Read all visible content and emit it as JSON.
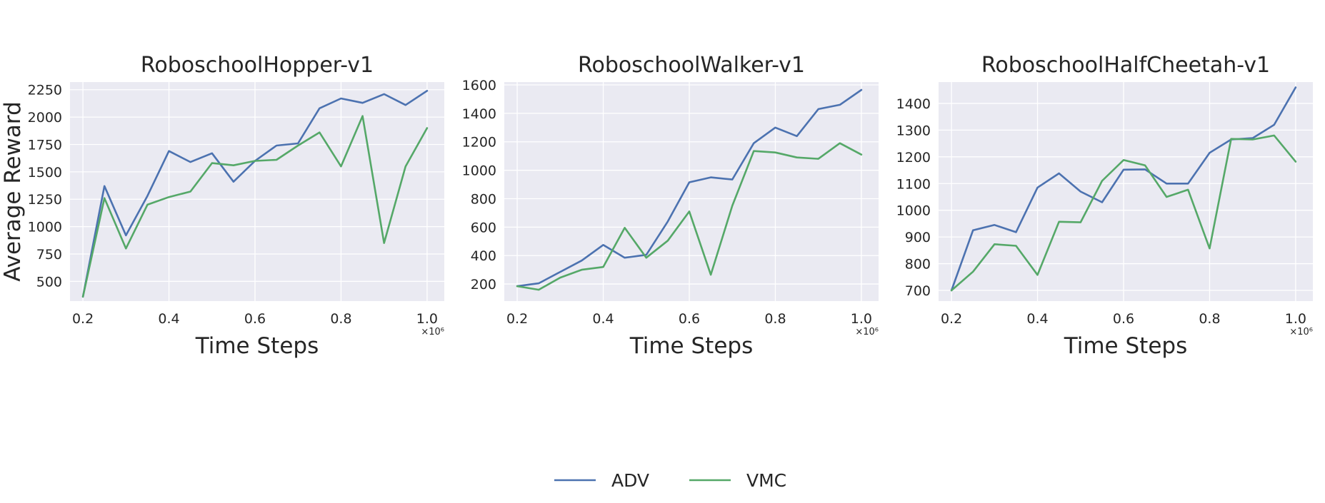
{
  "colors": {
    "ADV": "#4c72b0",
    "VMC": "#55a868",
    "panel_bg": "#eaeaf2",
    "grid": "#ffffff"
  },
  "legend": {
    "placement": "bottom-center",
    "entries": [
      "ADV",
      "VMC"
    ]
  },
  "chart_data": [
    {
      "type": "line",
      "title": "RoboschoolHopper-v1",
      "xlabel": "Time Steps",
      "ylabel": "Average Reward",
      "x_multiplier_label": "×10⁶",
      "x": [
        0.2,
        0.25,
        0.3,
        0.35,
        0.4,
        0.45,
        0.5,
        0.55,
        0.6,
        0.65,
        0.7,
        0.75,
        0.8,
        0.85,
        0.9,
        0.95,
        1.0
      ],
      "xlim": [
        0.17,
        1.04
      ],
      "ylim": [
        320,
        2320
      ],
      "xticks": [
        0.2,
        0.4,
        0.6,
        0.8,
        1.0
      ],
      "xtick_labels": [
        "0.2",
        "0.4",
        "0.6",
        "0.8",
        "1.0"
      ],
      "yticks": [
        500,
        750,
        1000,
        1250,
        1500,
        1750,
        2000,
        2250
      ],
      "ytick_labels": [
        "500",
        "750",
        "1000",
        "1250",
        "1500",
        "1750",
        "2000",
        "2250"
      ],
      "grid": true,
      "series": [
        {
          "name": "ADV",
          "values": [
            360,
            1370,
            920,
            1280,
            1690,
            1590,
            1670,
            1410,
            1600,
            1740,
            1760,
            2080,
            2170,
            2130,
            2210,
            2110,
            2240
          ]
        },
        {
          "name": "VMC",
          "values": [
            360,
            1260,
            800,
            1200,
            1270,
            1320,
            1580,
            1560,
            1600,
            1610,
            1740,
            1860,
            1550,
            2010,
            850,
            1550,
            1900
          ]
        }
      ]
    },
    {
      "type": "line",
      "title": "RoboschoolWalker-v1",
      "xlabel": "Time Steps",
      "ylabel": "",
      "x_multiplier_label": "×10⁶",
      "x": [
        0.2,
        0.25,
        0.3,
        0.35,
        0.4,
        0.45,
        0.5,
        0.55,
        0.6,
        0.65,
        0.7,
        0.75,
        0.8,
        0.85,
        0.9,
        0.95,
        1.0
      ],
      "xlim": [
        0.17,
        1.04
      ],
      "ylim": [
        80,
        1620
      ],
      "xticks": [
        0.2,
        0.4,
        0.6,
        0.8,
        1.0
      ],
      "xtick_labels": [
        "0.2",
        "0.4",
        "0.6",
        "0.8",
        "1.0"
      ],
      "yticks": [
        200,
        400,
        600,
        800,
        1000,
        1200,
        1400,
        1600
      ],
      "ytick_labels": [
        "200",
        "400",
        "600",
        "800",
        "1000",
        "1200",
        "1400",
        "1600"
      ],
      "grid": true,
      "series": [
        {
          "name": "ADV",
          "values": [
            185,
            205,
            285,
            365,
            475,
            385,
            405,
            640,
            915,
            950,
            935,
            1190,
            1300,
            1240,
            1430,
            1460,
            1565
          ]
        },
        {
          "name": "VMC",
          "values": [
            185,
            160,
            245,
            300,
            320,
            595,
            385,
            505,
            710,
            265,
            750,
            1135,
            1125,
            1090,
            1080,
            1190,
            1110
          ]
        }
      ]
    },
    {
      "type": "line",
      "title": "RoboschoolHalfCheetah-v1",
      "xlabel": "Time Steps",
      "ylabel": "",
      "x_multiplier_label": "×10⁶",
      "x": [
        0.2,
        0.25,
        0.3,
        0.35,
        0.4,
        0.45,
        0.5,
        0.55,
        0.6,
        0.65,
        0.7,
        0.75,
        0.8,
        0.85,
        0.9,
        0.95,
        1.0
      ],
      "xlim": [
        0.17,
        1.04
      ],
      "ylim": [
        660,
        1480
      ],
      "xticks": [
        0.2,
        0.4,
        0.6,
        0.8,
        1.0
      ],
      "xtick_labels": [
        "0.2",
        "0.4",
        "0.6",
        "0.8",
        "1.0"
      ],
      "yticks": [
        700,
        800,
        900,
        1000,
        1100,
        1200,
        1300,
        1400
      ],
      "ytick_labels": [
        "700",
        "800",
        "900",
        "1000",
        "1100",
        "1200",
        "1300",
        "1400"
      ],
      "grid": true,
      "series": [
        {
          "name": "ADV",
          "values": [
            700,
            925,
            945,
            918,
            1085,
            1138,
            1070,
            1030,
            1152,
            1153,
            1100,
            1100,
            1215,
            1265,
            1270,
            1320,
            1460
          ]
        },
        {
          "name": "VMC",
          "values": [
            700,
            770,
            873,
            867,
            758,
            957,
            955,
            1110,
            1188,
            1168,
            1050,
            1077,
            857,
            1267,
            1265,
            1280,
            1182
          ]
        }
      ]
    }
  ]
}
